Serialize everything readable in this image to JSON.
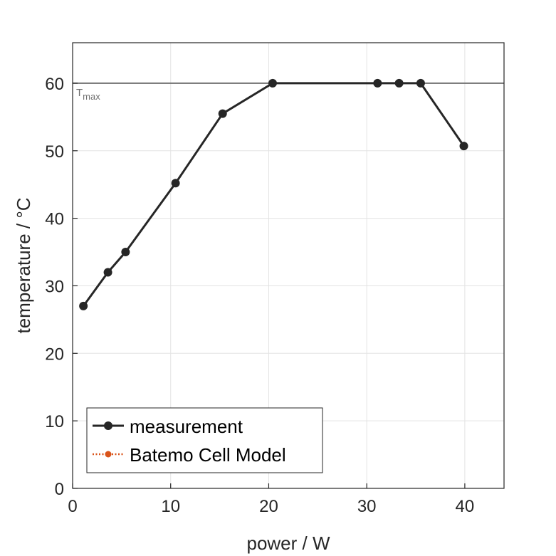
{
  "chart_data": {
    "type": "line",
    "xlabel": "power / W",
    "ylabel": "temperature / °C",
    "xlim": [
      0,
      44
    ],
    "ylim": [
      0,
      66
    ],
    "xticks": [
      0,
      10,
      20,
      30,
      40
    ],
    "yticks": [
      0,
      10,
      20,
      30,
      40,
      50,
      60
    ],
    "grid": true,
    "legend_position": "bottom-left",
    "series": [
      {
        "name": "measurement",
        "color": "#262626",
        "marker": "circle",
        "x": [
          1.1,
          3.6,
          5.4,
          10.5,
          15.3,
          20.4,
          31.1,
          33.3,
          35.5,
          39.9
        ],
        "y": [
          27.0,
          32.0,
          35.0,
          45.2,
          55.5,
          60.0,
          60.0,
          60.0,
          60.0,
          50.7
        ]
      },
      {
        "name": "Batemo Cell Model",
        "color": "#D95319",
        "marker": "circle",
        "style": "dotted",
        "x": [],
        "y": []
      }
    ],
    "reference_line": {
      "y": 60,
      "label": "T",
      "label_sub": "max",
      "color": "#707070"
    }
  }
}
